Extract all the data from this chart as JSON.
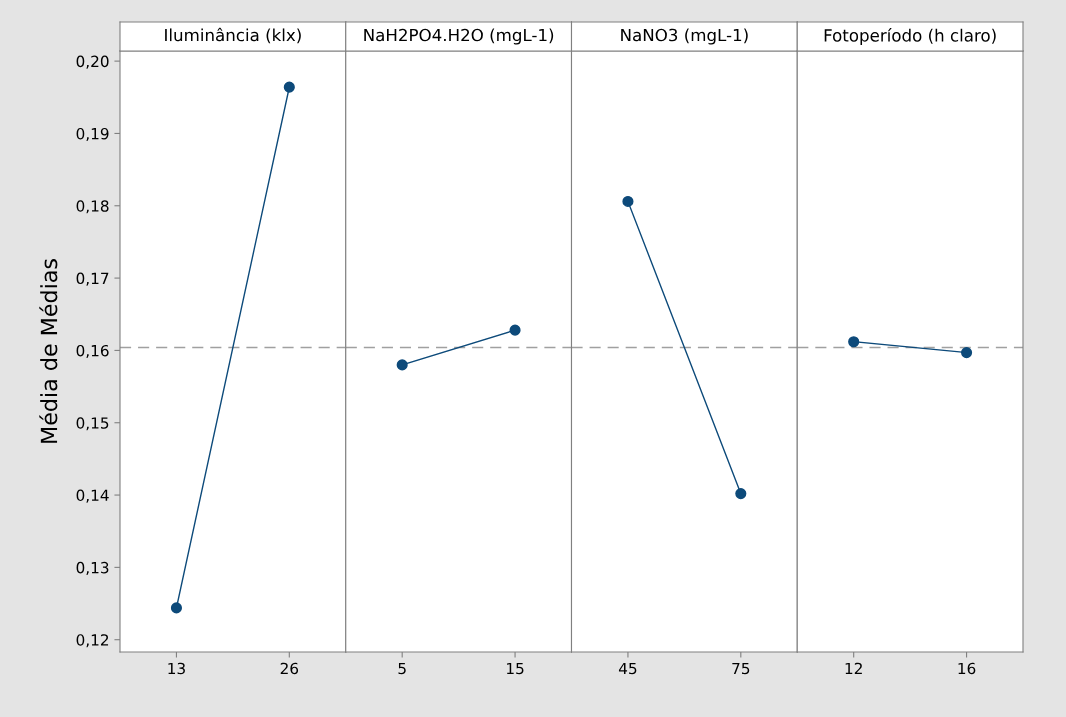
{
  "chart_data": [
    {
      "type": "line",
      "title": "Iluminância (klx)",
      "ylabel": "Média de Médias",
      "categories": [
        "13",
        "26"
      ],
      "series": [
        {
          "color": "#0d4a7a",
          "values": [
            0.1244,
            0.1964
          ]
        }
      ],
      "ylim": [
        0.1183,
        0.2014
      ],
      "yticks": [
        {
          "value": 0.12,
          "label": "0,12"
        },
        {
          "value": 0.13,
          "label": "0,13"
        },
        {
          "value": 0.14,
          "label": "0,14"
        },
        {
          "value": 0.15,
          "label": "0,15"
        },
        {
          "value": 0.16,
          "label": "0,16"
        },
        {
          "value": 0.17,
          "label": "0,17"
        },
        {
          "value": 0.18,
          "label": "0,18"
        },
        {
          "value": 0.19,
          "label": "0,19"
        },
        {
          "value": 0.2,
          "label": "0,20"
        }
      ],
      "ref_lines": [
        {
          "axis": "y",
          "value": 0.1604,
          "color": "#a0a0a0",
          "line_style": "dashed"
        }
      ],
      "marker": "circle",
      "grid": false
    },
    {
      "type": "line",
      "title": "NaH2PO4.H2O (mgL-1)",
      "categories": [
        "5",
        "15"
      ],
      "series": [
        {
          "color": "#0d4a7a",
          "values": [
            0.158,
            0.1628
          ]
        }
      ],
      "ylim": [
        0.1183,
        0.2014
      ],
      "tick_labels": "x",
      "ref_lines": [
        {
          "axis": "y",
          "value": 0.1604,
          "color": "#a0a0a0",
          "line_style": "dashed"
        }
      ],
      "marker": "circle",
      "grid": false
    },
    {
      "type": "line",
      "title": "NaNO3 (mgL-1)",
      "categories": [
        "45",
        "75"
      ],
      "series": [
        {
          "color": "#0d4a7a",
          "values": [
            0.1806,
            0.1402
          ]
        }
      ],
      "ylim": [
        0.1183,
        0.2014
      ],
      "tick_labels": "x",
      "ref_lines": [
        {
          "axis": "y",
          "value": 0.1604,
          "color": "#a0a0a0",
          "line_style": "dashed"
        }
      ],
      "marker": "circle",
      "grid": false
    },
    {
      "type": "line",
      "title": "Fotoperíodo (h claro)",
      "categories": [
        "12",
        "16"
      ],
      "series": [
        {
          "color": "#0d4a7a",
          "values": [
            0.1612,
            0.1597
          ]
        }
      ],
      "ylim": [
        0.1183,
        0.2014
      ],
      "tick_labels": "x",
      "ref_lines": [
        {
          "axis": "y",
          "value": 0.1604,
          "color": "#a0a0a0",
          "line_style": "dashed"
        }
      ],
      "marker": "circle",
      "grid": false
    }
  ]
}
